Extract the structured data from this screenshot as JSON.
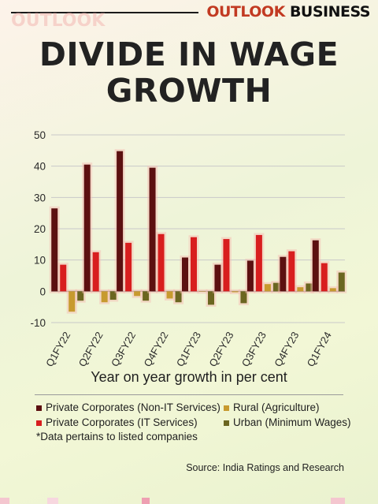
{
  "brand": {
    "part1": "OUTLOOK",
    "part2": "BUSINESS"
  },
  "watermark": "OUTLOOK",
  "title_line1": "DIVIDE IN WAGE",
  "title_line2": "GROWTH",
  "chart_data": {
    "type": "bar",
    "title": "DIVIDE IN WAGE GROWTH",
    "xlabel": "Year on year growth in per cent",
    "ylabel": "",
    "ylim": [
      -10,
      50
    ],
    "yticks": [
      50,
      40,
      30,
      20,
      10,
      0,
      -10
    ],
    "grid": true,
    "legend_position": "bottom",
    "categories": [
      "Q1FY22",
      "Q2FY22",
      "Q3FY22",
      "Q4FY22",
      "Q1FY23",
      "Q2FY23",
      "Q3FY23",
      "Q4FY23",
      "Q1FY24"
    ],
    "series": [
      {
        "name": "Private Corporates (Non-IT Services)",
        "color": "#5c1010",
        "values": [
          26.5,
          40.5,
          44.8,
          39.5,
          10.8,
          8.5,
          9.8,
          11.0,
          16.3
        ]
      },
      {
        "name": "Private Corporates (IT Services)",
        "color": "#d81e1e",
        "values": [
          8.5,
          12.5,
          15.5,
          18.3,
          17.3,
          16.7,
          18.0,
          12.8,
          9.0
        ]
      },
      {
        "name": "Rural (Agriculture)",
        "color": "#c79a2e",
        "values": [
          -6.5,
          -3.5,
          -1.5,
          -2.3,
          0.0,
          -0.3,
          2.3,
          1.3,
          1.0
        ]
      },
      {
        "name": "Urban (Minimum Wages)",
        "color": "#6b6620",
        "values": [
          -3.0,
          -2.7,
          -3.0,
          -3.5,
          -4.3,
          -3.8,
          2.7,
          2.5,
          6.0
        ]
      }
    ]
  },
  "legend": [
    {
      "label": "Private Corporates (Non-IT Services)",
      "color": "#5c1010"
    },
    {
      "label": "Rural (Agriculture)",
      "color": "#c79a2e"
    },
    {
      "label": "Private Corporates (IT Services)",
      "color": "#d81e1e"
    },
    {
      "label": "Urban (Minimum Wages)",
      "color": "#6b6620"
    }
  ],
  "note": "*Data pertains to listed companies",
  "source": "Source: India Ratings and Research"
}
